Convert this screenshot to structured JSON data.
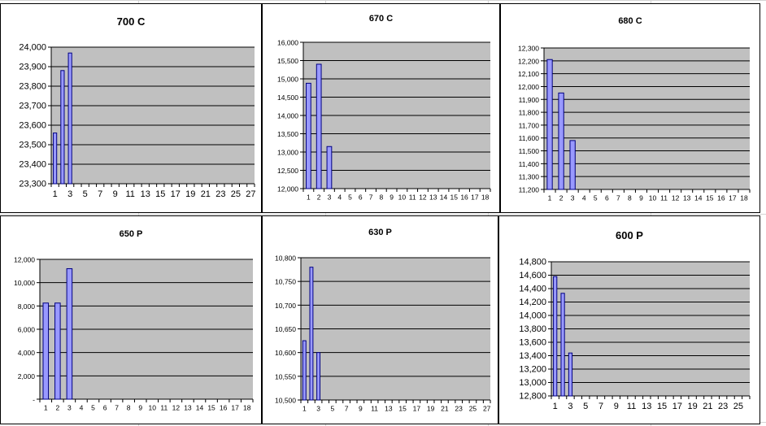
{
  "colors": {
    "plot_area": "#c0c0c0",
    "bar_fill": "#9999ff",
    "bar_stroke": "#000080",
    "gridline": "#000000",
    "sheet_grid": "#d4d4d4"
  },
  "chart_data": [
    {
      "type": "bar",
      "title": "700 C",
      "xlabel": "",
      "ylabel": "",
      "ylim": [
        23300,
        24000
      ],
      "y_ticks": [
        23300,
        23400,
        23500,
        23600,
        23700,
        23800,
        23900,
        24000
      ],
      "y_tick_labels": [
        "23,300",
        "23,400",
        "23,500",
        "23,600",
        "23,700",
        "23,800",
        "23,900",
        "24,000"
      ],
      "x_tick_labels": [
        "1",
        "3",
        "5",
        "7",
        "9",
        "11",
        "13",
        "15",
        "17",
        "19",
        "21",
        "23",
        "25",
        "27"
      ],
      "category_count": 27,
      "x": [
        1,
        2,
        3
      ],
      "values": [
        23560,
        23880,
        23970
      ],
      "grid": true,
      "legend": "none"
    },
    {
      "type": "bar",
      "title": "670 C",
      "xlabel": "",
      "ylabel": "",
      "ylim": [
        12000,
        16000
      ],
      "y_ticks": [
        12000,
        12500,
        13000,
        13500,
        14000,
        14500,
        15000,
        15500,
        16000
      ],
      "y_tick_labels": [
        "12,000",
        "12,500",
        "13,000",
        "13,500",
        "14,000",
        "14,500",
        "15,000",
        "15,500",
        "16,000"
      ],
      "x_tick_labels": [
        "1",
        "2",
        "3",
        "4",
        "5",
        "6",
        "7",
        "8",
        "9",
        "10",
        "11",
        "12",
        "13",
        "14",
        "15",
        "16",
        "17",
        "18"
      ],
      "category_count": 18,
      "x": [
        1,
        2,
        3
      ],
      "values": [
        14880,
        15400,
        13150
      ],
      "grid": true,
      "legend": "none"
    },
    {
      "type": "bar",
      "title": "680 C",
      "xlabel": "",
      "ylabel": "",
      "ylim": [
        11200,
        12300
      ],
      "y_ticks": [
        11200,
        11300,
        11400,
        11500,
        11600,
        11700,
        11800,
        11900,
        12000,
        12100,
        12200,
        12300
      ],
      "y_tick_labels": [
        "11,200",
        "11,300",
        "11,400",
        "11,500",
        "11,600",
        "11,700",
        "11,800",
        "11,900",
        "12,000",
        "12,100",
        "12,200",
        "12,300"
      ],
      "x_tick_labels": [
        "1",
        "2",
        "3",
        "4",
        "5",
        "6",
        "7",
        "8",
        "9",
        "10",
        "11",
        "12",
        "13",
        "14",
        "15",
        "16",
        "17",
        "18"
      ],
      "category_count": 18,
      "x": [
        1,
        2,
        3
      ],
      "values": [
        12210,
        11950,
        11580
      ],
      "grid": true,
      "legend": "none"
    },
    {
      "type": "bar",
      "title": "650 P",
      "xlabel": "",
      "ylabel": "",
      "ylim": [
        0,
        12000
      ],
      "y_ticks": [
        0,
        2000,
        4000,
        6000,
        8000,
        10000,
        12000
      ],
      "y_tick_labels": [
        "-",
        "2,000",
        "4,000",
        "6,000",
        "8,000",
        "10,000",
        "12,000"
      ],
      "x_tick_labels": [
        "1",
        "2",
        "3",
        "4",
        "5",
        "6",
        "7",
        "8",
        "9",
        "10",
        "11",
        "12",
        "13",
        "14",
        "15",
        "16",
        "17",
        "18"
      ],
      "category_count": 18,
      "x": [
        1,
        2,
        3
      ],
      "values": [
        8250,
        8250,
        11200
      ],
      "grid": true,
      "legend": "none"
    },
    {
      "type": "bar",
      "title": "630 P",
      "xlabel": "",
      "ylabel": "",
      "ylim": [
        10500,
        10800
      ],
      "y_ticks": [
        10500,
        10550,
        10600,
        10650,
        10700,
        10750,
        10800
      ],
      "y_tick_labels": [
        "10,500",
        "10,550",
        "10,600",
        "10,650",
        "10,700",
        "10,750",
        "10,800"
      ],
      "x_tick_labels": [
        "1",
        "3",
        "5",
        "7",
        "9",
        "11",
        "13",
        "15",
        "17",
        "19",
        "21",
        "23",
        "25",
        "27"
      ],
      "category_count": 27,
      "x": [
        1,
        2,
        3
      ],
      "values": [
        10625,
        10780,
        10600
      ],
      "grid": true,
      "legend": "none"
    },
    {
      "type": "bar",
      "title": "600 P",
      "xlabel": "",
      "ylabel": "",
      "ylim": [
        12800,
        14800
      ],
      "y_ticks": [
        12800,
        13000,
        13200,
        13400,
        13600,
        13800,
        14000,
        14200,
        14400,
        14600,
        14800
      ],
      "y_tick_labels": [
        "12,800",
        "13,000",
        "13,200",
        "13,400",
        "13,600",
        "13,800",
        "14,000",
        "14,200",
        "14,400",
        "14,600",
        "14,800"
      ],
      "x_tick_labels": [
        "1",
        "3",
        "5",
        "7",
        "9",
        "11",
        "13",
        "15",
        "17",
        "19",
        "21",
        "23",
        "25"
      ],
      "category_count": 26,
      "x": [
        1,
        2,
        3
      ],
      "values": [
        14580,
        14330,
        13440
      ],
      "grid": true,
      "legend": "none"
    }
  ]
}
